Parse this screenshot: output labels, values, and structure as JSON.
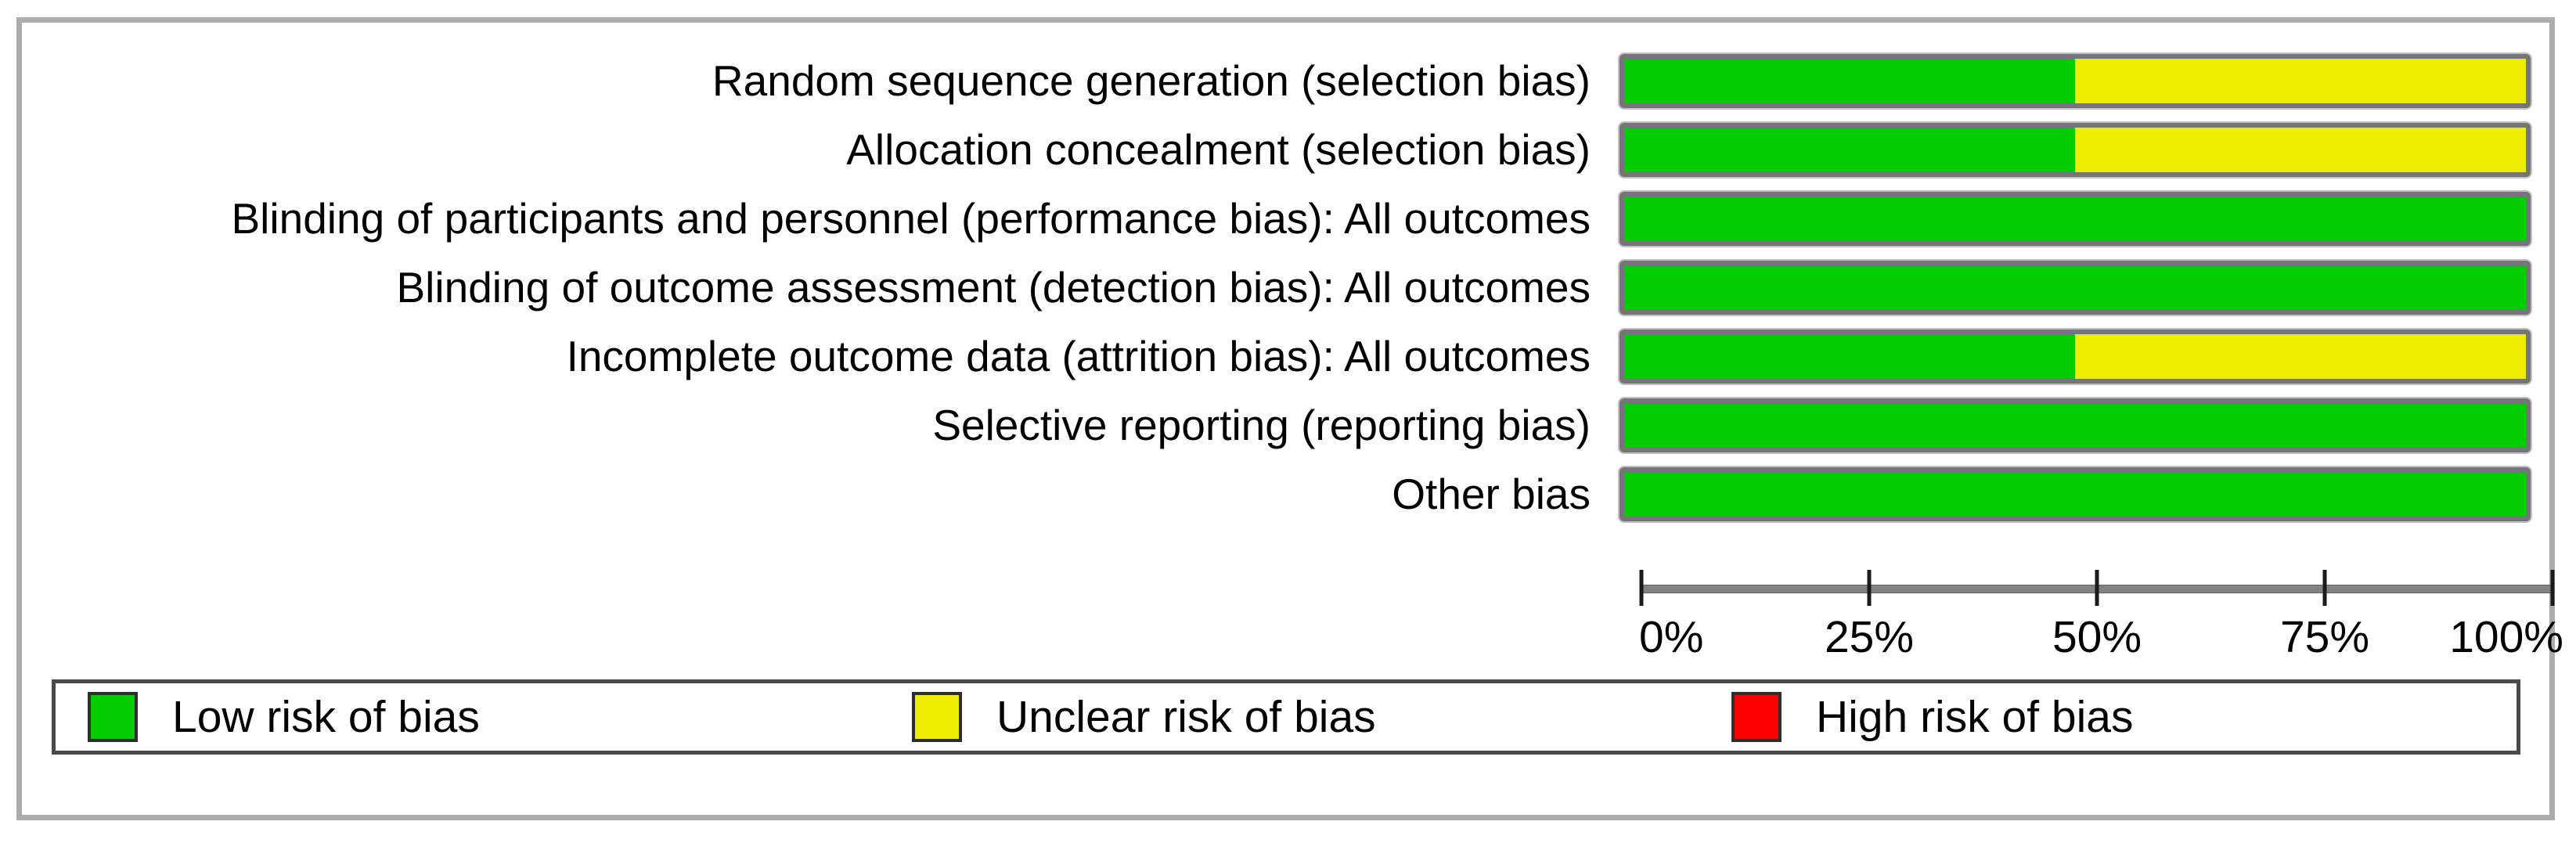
{
  "chart_data": {
    "type": "bar",
    "orientation": "horizontal",
    "stacked": true,
    "title": "",
    "xlabel": "",
    "ylabel": "",
    "xlim": [
      0,
      100
    ],
    "x_ticks": [
      0,
      25,
      50,
      75,
      100
    ],
    "x_tick_labels": [
      "0%",
      "25%",
      "50%",
      "75%",
      "100%"
    ],
    "grid": false,
    "legend_position": "bottom",
    "categories": [
      "Random sequence generation (selection bias)",
      "Allocation concealment (selection bias)",
      "Blinding of participants and personnel (performance bias): All outcomes",
      "Blinding of outcome assessment (detection bias): All outcomes",
      "Incomplete outcome data (attrition bias): All outcomes",
      "Selective reporting (reporting bias)",
      "Other bias"
    ],
    "series": [
      {
        "name": "Low risk of bias",
        "color": "#00CC00",
        "values": [
          50,
          50,
          100,
          100,
          50,
          100,
          100
        ]
      },
      {
        "name": "Unclear risk of bias",
        "color": "#EDED00",
        "values": [
          50,
          50,
          0,
          0,
          50,
          0,
          0
        ]
      },
      {
        "name": "High risk of bias",
        "color": "#FF0000",
        "values": [
          0,
          0,
          0,
          0,
          0,
          0,
          0
        ]
      }
    ]
  },
  "legend": {
    "items": [
      {
        "label": "Low risk of bias",
        "color": "#00CC00"
      },
      {
        "label": "Unclear risk of bias",
        "color": "#EDED00"
      },
      {
        "label": "High risk of bias",
        "color": "#FF0000"
      }
    ]
  },
  "colors": {
    "low_risk": "#00CC00",
    "unclear_risk": "#EDED00",
    "high_risk": "#FF0000",
    "bar_frame": "#74747a",
    "axis_line": "#828282",
    "figure_border": "#acacac",
    "legend_border": "#4a4a4a",
    "text": "#000000"
  }
}
